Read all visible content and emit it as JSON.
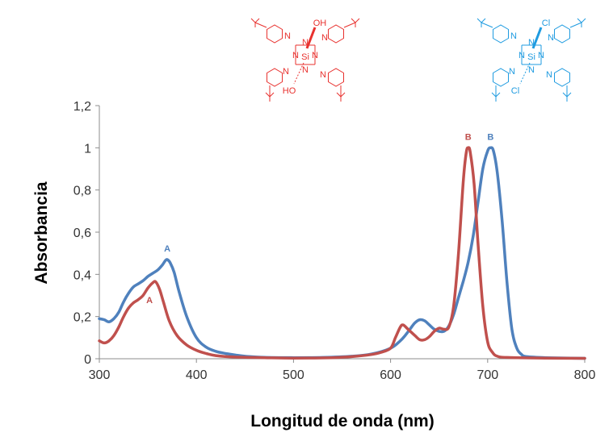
{
  "chart_data": {
    "type": "line",
    "xlabel": "Longitud de onda (nm)",
    "ylabel": "Absorbancia",
    "xlim": [
      300,
      800
    ],
    "ylim": [
      0,
      1.2
    ],
    "x_ticks": [
      "300",
      "400",
      "500",
      "600",
      "700",
      "800"
    ],
    "y_ticks": [
      "0",
      "0,2",
      "0,4",
      "0,6",
      "0,8",
      "1",
      "1,2"
    ],
    "grid": false,
    "legend": "none",
    "series": [
      {
        "color": "#4f81bd",
        "points": [
          [
            300,
            0.19
          ],
          [
            305,
            0.185
          ],
          [
            310,
            0.175
          ],
          [
            315,
            0.19
          ],
          [
            320,
            0.22
          ],
          [
            325,
            0.27
          ],
          [
            330,
            0.31
          ],
          [
            335,
            0.34
          ],
          [
            340,
            0.355
          ],
          [
            345,
            0.37
          ],
          [
            350,
            0.39
          ],
          [
            355,
            0.405
          ],
          [
            360,
            0.42
          ],
          [
            365,
            0.445
          ],
          [
            368,
            0.465
          ],
          [
            370,
            0.47
          ],
          [
            373,
            0.455
          ],
          [
            377,
            0.41
          ],
          [
            382,
            0.32
          ],
          [
            390,
            0.2
          ],
          [
            400,
            0.1
          ],
          [
            410,
            0.055
          ],
          [
            420,
            0.035
          ],
          [
            430,
            0.025
          ],
          [
            440,
            0.018
          ],
          [
            450,
            0.012
          ],
          [
            470,
            0.007
          ],
          [
            500,
            0.005
          ],
          [
            530,
            0.006
          ],
          [
            560,
            0.012
          ],
          [
            580,
            0.022
          ],
          [
            600,
            0.05
          ],
          [
            610,
            0.085
          ],
          [
            615,
            0.11
          ],
          [
            620,
            0.14
          ],
          [
            625,
            0.17
          ],
          [
            630,
            0.185
          ],
          [
            635,
            0.18
          ],
          [
            640,
            0.16
          ],
          [
            645,
            0.14
          ],
          [
            650,
            0.13
          ],
          [
            655,
            0.13
          ],
          [
            660,
            0.155
          ],
          [
            665,
            0.21
          ],
          [
            670,
            0.29
          ],
          [
            675,
            0.37
          ],
          [
            680,
            0.46
          ],
          [
            685,
            0.58
          ],
          [
            690,
            0.74
          ],
          [
            695,
            0.9
          ],
          [
            700,
            0.985
          ],
          [
            703,
            1.0
          ],
          [
            706,
            0.985
          ],
          [
            710,
            0.88
          ],
          [
            715,
            0.65
          ],
          [
            720,
            0.36
          ],
          [
            725,
            0.14
          ],
          [
            730,
            0.05
          ],
          [
            735,
            0.02
          ],
          [
            740,
            0.01
          ],
          [
            760,
            0.005
          ],
          [
            800,
            0.002
          ]
        ]
      },
      {
        "color": "#c0504d",
        "points": [
          [
            300,
            0.085
          ],
          [
            305,
            0.075
          ],
          [
            310,
            0.085
          ],
          [
            315,
            0.11
          ],
          [
            320,
            0.15
          ],
          [
            325,
            0.2
          ],
          [
            330,
            0.24
          ],
          [
            335,
            0.265
          ],
          [
            340,
            0.28
          ],
          [
            345,
            0.3
          ],
          [
            350,
            0.335
          ],
          [
            355,
            0.36
          ],
          [
            358,
            0.365
          ],
          [
            362,
            0.33
          ],
          [
            366,
            0.27
          ],
          [
            372,
            0.18
          ],
          [
            380,
            0.11
          ],
          [
            390,
            0.065
          ],
          [
            400,
            0.04
          ],
          [
            410,
            0.025
          ],
          [
            420,
            0.015
          ],
          [
            440,
            0.008
          ],
          [
            470,
            0.005
          ],
          [
            500,
            0.003
          ],
          [
            540,
            0.005
          ],
          [
            560,
            0.01
          ],
          [
            580,
            0.02
          ],
          [
            590,
            0.03
          ],
          [
            600,
            0.05
          ],
          [
            605,
            0.1
          ],
          [
            610,
            0.15
          ],
          [
            613,
            0.16
          ],
          [
            618,
            0.14
          ],
          [
            625,
            0.11
          ],
          [
            630,
            0.09
          ],
          [
            635,
            0.09
          ],
          [
            640,
            0.105
          ],
          [
            645,
            0.13
          ],
          [
            650,
            0.145
          ],
          [
            655,
            0.14
          ],
          [
            660,
            0.15
          ],
          [
            665,
            0.25
          ],
          [
            670,
            0.5
          ],
          [
            675,
            0.85
          ],
          [
            678,
            0.98
          ],
          [
            680,
            1.0
          ],
          [
            682,
            0.98
          ],
          [
            686,
            0.83
          ],
          [
            690,
            0.55
          ],
          [
            695,
            0.25
          ],
          [
            700,
            0.08
          ],
          [
            705,
            0.03
          ],
          [
            710,
            0.012
          ],
          [
            720,
            0.006
          ],
          [
            760,
            0.003
          ],
          [
            800,
            0.002
          ]
        ]
      }
    ],
    "annotations": [
      {
        "text": "A",
        "x": 370,
        "y": 0.47,
        "color": "#4f81bd"
      },
      {
        "text": "A",
        "x": 355,
        "y": 0.36,
        "color": "#c0504d"
      },
      {
        "text": "B",
        "x": 680,
        "y": 1.0,
        "color": "#c0504d"
      },
      {
        "text": "B",
        "x": 703,
        "y": 1.0,
        "color": "#4f81bd"
      }
    ]
  },
  "structures": [
    {
      "color": "#e8312e",
      "atoms": {
        "top": "OH",
        "bottom": "HO",
        "center": "Si",
        "ring_n": "N"
      }
    },
    {
      "color": "#1e9be0",
      "atoms": {
        "top": "Cl",
        "bottom": "Cl",
        "center": "Si",
        "ring_n": "N"
      }
    }
  ]
}
